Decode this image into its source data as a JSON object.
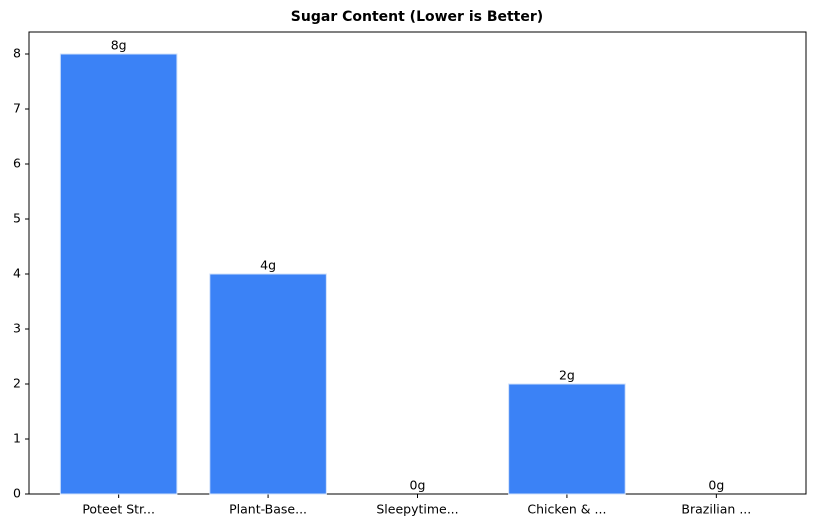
{
  "chart_data": {
    "type": "bar",
    "title": "Sugar Content (Lower is Better)",
    "categories": [
      "Poteet Str...",
      "Plant-Base...",
      "Sleepytime...",
      "Chicken & ...",
      "Brazilian ..."
    ],
    "values": [
      8,
      4,
      0,
      2,
      0
    ],
    "value_labels": [
      "8g",
      "4g",
      "0g",
      "2g",
      "0g"
    ],
    "color": "#3b82f6",
    "ylim": [
      0,
      8.4
    ],
    "yticks": [
      0,
      1,
      2,
      3,
      4,
      5,
      6,
      7,
      8
    ],
    "grid": false
  }
}
